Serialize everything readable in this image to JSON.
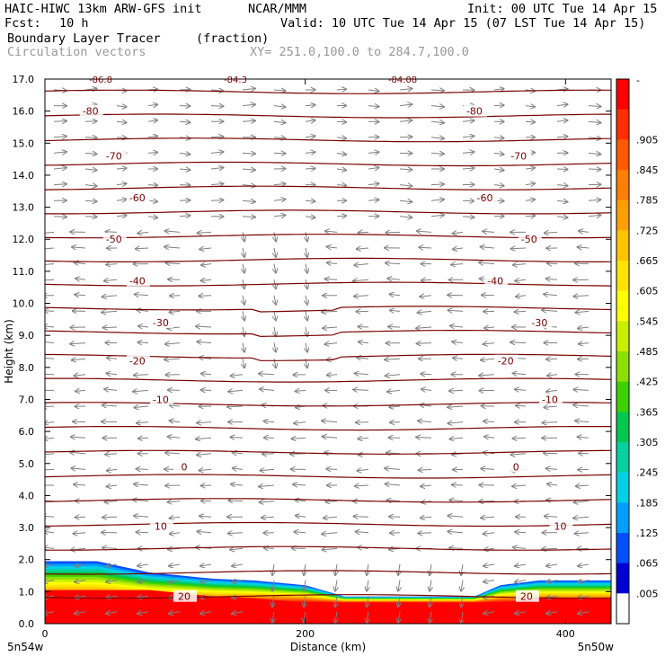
{
  "header": {
    "model": "HAIC-HIWC 13km ARW-GFS init",
    "org": "NCAR/MMM",
    "init": "Init: 00 UTC Tue 14 Apr 15",
    "fcst_label": "Fcst:",
    "fcst_value": "10 h",
    "valid": "Valid: 10 UTC Tue 14 Apr 15 (07 LST Tue 14 Apr 15)",
    "field": "Boundary Layer Tracer",
    "field_units": "(fraction)",
    "vectors": "Circulation vectors",
    "xy": "XY= 251.0,100.0 to 284.7,100.0"
  },
  "chart_data": {
    "type": "contour-cross-section",
    "xlabel": "Distance (km)",
    "ylabel": "Height (km)",
    "xlim": [
      0,
      435
    ],
    "ylim": [
      0,
      17
    ],
    "x_ticks": [
      0,
      200,
      400
    ],
    "y_ticks": [
      "0.0",
      "1.0",
      "2.0",
      "3.0",
      "4.0",
      "5.0",
      "6.0",
      "7.0",
      "8.0",
      "9.0",
      "10.0",
      "11.0",
      "12.0",
      "13.0",
      "14.0",
      "15.0",
      "16.0",
      "17.0"
    ],
    "x_endpoints": [
      "5n54w",
      "5n50w"
    ],
    "top_labels": [
      "-86.8",
      "-84.3",
      "-84.08"
    ],
    "isotherms": [
      {
        "label": "-80",
        "h": 16.0
      },
      {
        "label": "-70",
        "h": 14.6
      },
      {
        "label": "-60",
        "h": 13.3
      },
      {
        "label": "-50",
        "h": 12.0
      },
      {
        "label": "-40",
        "h": 10.7
      },
      {
        "label": "-30",
        "h": 9.4
      },
      {
        "label": "-20",
        "h": 8.2
      },
      {
        "label": "-10",
        "h": 7.0
      },
      {
        "label": "0",
        "h": 4.9
      },
      {
        "label": "10",
        "h": 3.05
      },
      {
        "label": "20",
        "h": 0.85
      }
    ],
    "colorbar": {
      "labels": [
        "-",
        ".905",
        ".845",
        ".785",
        ".725",
        ".665",
        ".605",
        ".545",
        ".485",
        ".425",
        ".365",
        ".305",
        ".245",
        ".185",
        ".125",
        ".065",
        ".005"
      ],
      "colors": [
        "#ff0000",
        "#ff3000",
        "#ff5a00",
        "#ff7f00",
        "#ffa000",
        "#ffc400",
        "#ffe400",
        "#ffff00",
        "#c8f000",
        "#8ce000",
        "#3cd200",
        "#00c850",
        "#00d2a0",
        "#00d2e6",
        "#00a0ff",
        "#0050ff",
        "#0000d2",
        "#ffffff"
      ]
    },
    "tracer_top_km": [
      [
        0,
        1.95
      ],
      [
        40,
        1.95
      ],
      [
        80,
        1.6
      ],
      [
        130,
        1.4
      ],
      [
        160,
        1.35
      ],
      [
        200,
        1.2
      ],
      [
        230,
        0.85
      ],
      [
        280,
        0.85
      ],
      [
        330,
        0.85
      ],
      [
        350,
        1.2
      ],
      [
        380,
        1.35
      ],
      [
        435,
        1.35
      ]
    ]
  }
}
